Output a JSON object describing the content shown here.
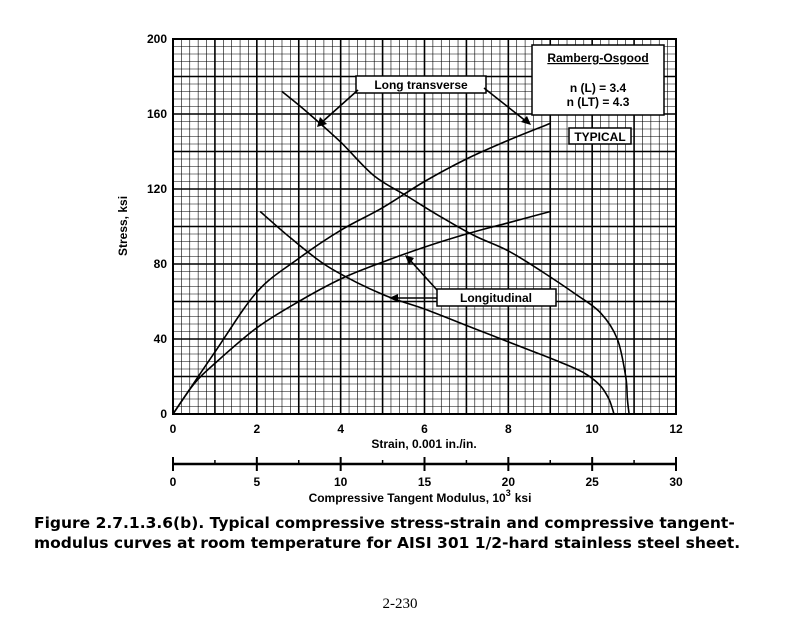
{
  "chart_data": {
    "type": "line",
    "ylabel": "Stress, ksi",
    "xlabel": "Strain, 0.001 in./in.",
    "x2label": "Compressive Tangent Modulus, 10",
    "x2label_sup": "3",
    "x2label_unit": "ksi",
    "xlim": [
      0,
      12
    ],
    "ylim": [
      0,
      200
    ],
    "x2lim": [
      0,
      30
    ],
    "xticks": [
      "0",
      "2",
      "4",
      "6",
      "8",
      "10",
      "12"
    ],
    "yticks": [
      "0",
      "40",
      "80",
      "120",
      "160",
      "200"
    ],
    "x2ticks": [
      "0",
      "5",
      "10",
      "15",
      "20",
      "25",
      "30"
    ],
    "grid": true,
    "legend_box": {
      "title": "Ramberg-Osgood",
      "lines": [
        "n (L) = 3.4",
        "n (LT) = 4.3"
      ]
    },
    "typical_label": "TYPICAL",
    "annotations": {
      "long_transverse": "Long transverse",
      "longitudinal": "Longitudinal"
    },
    "series": [
      {
        "axis": "strain",
        "x": [
          0,
          1,
          2,
          3,
          4,
          5,
          6,
          7,
          8,
          9
        ],
        "y": [
          0,
          33,
          65,
          83,
          98,
          110,
          124,
          136,
          146,
          155
        ]
      },
      {
        "axis": "strain",
        "x": [
          0,
          0.5,
          1,
          2,
          3,
          4,
          5,
          6,
          7,
          8,
          9
        ],
        "y": [
          0,
          16,
          27,
          46,
          60,
          72,
          81,
          89,
          96,
          102,
          108
        ]
      },
      {
        "axis": "modulus",
        "x": [
          6.5,
          8,
          10,
          12,
          14,
          16,
          18,
          20,
          22,
          24,
          25.5,
          26.5,
          27,
          27.1,
          27.2
        ],
        "y": [
          172,
          161,
          145,
          127,
          116,
          105,
          95,
          87,
          76,
          64,
          54,
          40,
          20,
          8,
          0
        ]
      },
      {
        "axis": "modulus",
        "x": [
          5.2,
          7,
          9,
          11,
          13,
          15,
          17,
          19,
          21,
          23,
          24.5,
          25.5,
          26,
          26.2,
          26.3
        ],
        "y": [
          108,
          94,
          80,
          70,
          62,
          56,
          49,
          42,
          35,
          28,
          22,
          15,
          8,
          3,
          0
        ]
      }
    ]
  },
  "caption": "Figure 2.7.1.3.6(b).  Typical compressive stress-strain and compressive tangent-modulus curves at room temperature for AISI 301 1/2-hard stainless steel sheet.",
  "page_number": "2-230"
}
